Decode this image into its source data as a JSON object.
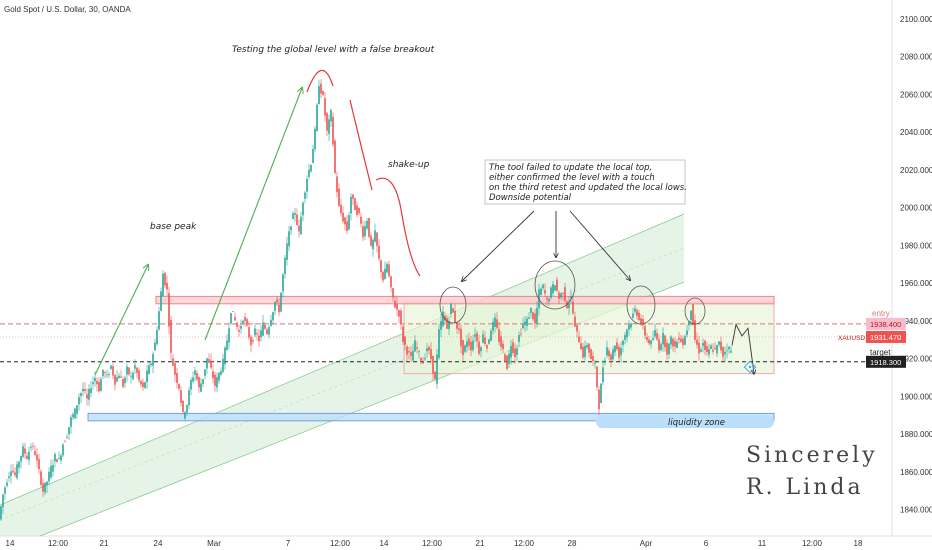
{
  "symbol_title": "Gold Spot / U.S. Dollar, 30, OANDA",
  "colors": {
    "up": "#26a69a",
    "down": "#ef5350",
    "resistance_zone": "#e57373",
    "range_box": "#e8f5d8",
    "liquidity_zone": "#5c8fd6",
    "channel": "#c8e6c9",
    "arrow_green": "#4caf50",
    "arrow_red": "#e53935",
    "entry_line": "#e57373",
    "target_line": "#222222"
  },
  "chart_data": {
    "type": "candlestick",
    "y_axis": {
      "min": 1826,
      "max": 2110,
      "ticks": [
        1840,
        1860,
        1880,
        1900,
        1920,
        1940,
        1960,
        1980,
        2000,
        2020,
        2040,
        2060,
        2080,
        2100
      ],
      "tick_labels": [
        "1840.000",
        "1860.000",
        "1880.000",
        "1900.000",
        "1920.000",
        "1940.000",
        "1960.000",
        "1980.000",
        "2000.000",
        "2020.000",
        "2040.000",
        "2060.000",
        "2080.000",
        "2100.000"
      ]
    },
    "x_axis": {
      "tick_labels": [
        "14",
        "12:00",
        "21",
        "24",
        "Mar",
        "7",
        "12:00",
        "14",
        "12:00",
        "21",
        "12:00",
        "28",
        "Apr",
        "6",
        "11",
        "12:00",
        "18"
      ]
    },
    "price_path": [
      [
        0,
        1835
      ],
      [
        4,
        1848
      ],
      [
        8,
        1856
      ],
      [
        12,
        1862
      ],
      [
        16,
        1858
      ],
      [
        20,
        1866
      ],
      [
        24,
        1872
      ],
      [
        28,
        1868
      ],
      [
        32,
        1874
      ],
      [
        36,
        1870
      ],
      [
        40,
        1860
      ],
      [
        44,
        1850
      ],
      [
        48,
        1855
      ],
      [
        52,
        1862
      ],
      [
        56,
        1868
      ],
      [
        60,
        1866
      ],
      [
        64,
        1875
      ],
      [
        68,
        1880
      ],
      [
        72,
        1888
      ],
      [
        76,
        1892
      ],
      [
        80,
        1900
      ],
      [
        84,
        1904
      ],
      [
        88,
        1898
      ],
      [
        92,
        1906
      ],
      [
        96,
        1910
      ],
      [
        100,
        1904
      ],
      [
        104,
        1914
      ],
      [
        108,
        1910
      ],
      [
        112,
        1916
      ],
      [
        116,
        1908
      ],
      [
        120,
        1912
      ],
      [
        124,
        1906
      ],
      [
        128,
        1914
      ],
      [
        132,
        1910
      ],
      [
        136,
        1916
      ],
      [
        140,
        1908
      ],
      [
        144,
        1904
      ],
      [
        148,
        1912
      ],
      [
        152,
        1918
      ],
      [
        156,
        1928
      ],
      [
        160,
        1945
      ],
      [
        164,
        1965
      ],
      [
        168,
        1956
      ],
      [
        172,
        1922
      ],
      [
        176,
        1912
      ],
      [
        180,
        1905
      ],
      [
        184,
        1890
      ],
      [
        188,
        1896
      ],
      [
        192,
        1908
      ],
      [
        196,
        1914
      ],
      [
        200,
        1904
      ],
      [
        204,
        1910
      ],
      [
        208,
        1920
      ],
      [
        212,
        1914
      ],
      [
        216,
        1906
      ],
      [
        220,
        1912
      ],
      [
        224,
        1918
      ],
      [
        228,
        1930
      ],
      [
        232,
        1946
      ],
      [
        236,
        1940
      ],
      [
        240,
        1934
      ],
      [
        244,
        1942
      ],
      [
        248,
        1936
      ],
      [
        252,
        1928
      ],
      [
        256,
        1934
      ],
      [
        260,
        1930
      ],
      [
        264,
        1938
      ],
      [
        268,
        1934
      ],
      [
        272,
        1942
      ],
      [
        276,
        1950
      ],
      [
        280,
        1946
      ],
      [
        284,
        1964
      ],
      [
        288,
        1980
      ],
      [
        292,
        1992
      ],
      [
        296,
        1998
      ],
      [
        300,
        1986
      ],
      [
        304,
        2004
      ],
      [
        308,
        2016
      ],
      [
        312,
        2024
      ],
      [
        316,
        2040
      ],
      [
        320,
        2066
      ],
      [
        324,
        2058
      ],
      [
        328,
        2040
      ],
      [
        332,
        2050
      ],
      [
        336,
        2018
      ],
      [
        340,
        2000
      ],
      [
        344,
        1994
      ],
      [
        348,
        1988
      ],
      [
        352,
        2006
      ],
      [
        356,
        2000
      ],
      [
        360,
        1996
      ],
      [
        364,
        1986
      ],
      [
        368,
        1994
      ],
      [
        372,
        1978
      ],
      [
        376,
        1986
      ],
      [
        380,
        1972
      ],
      [
        384,
        1962
      ],
      [
        388,
        1970
      ],
      [
        392,
        1956
      ],
      [
        396,
        1948
      ],
      [
        400,
        1944
      ],
      [
        404,
        1930
      ],
      [
        408,
        1924
      ],
      [
        412,
        1920
      ],
      [
        416,
        1928
      ],
      [
        420,
        1922
      ],
      [
        424,
        1918
      ],
      [
        428,
        1926
      ],
      [
        432,
        1920
      ],
      [
        436,
        1908
      ],
      [
        440,
        1934
      ],
      [
        444,
        1944
      ],
      [
        448,
        1936
      ],
      [
        452,
        1948
      ],
      [
        456,
        1940
      ],
      [
        460,
        1934
      ],
      [
        464,
        1922
      ],
      [
        468,
        1930
      ],
      [
        472,
        1926
      ],
      [
        476,
        1934
      ],
      [
        480,
        1924
      ],
      [
        484,
        1932
      ],
      [
        488,
        1926
      ],
      [
        492,
        1936
      ],
      [
        496,
        1940
      ],
      [
        500,
        1930
      ],
      [
        504,
        1924
      ],
      [
        508,
        1916
      ],
      [
        512,
        1928
      ],
      [
        516,
        1922
      ],
      [
        520,
        1932
      ],
      [
        524,
        1938
      ],
      [
        528,
        1940
      ],
      [
        532,
        1946
      ],
      [
        536,
        1938
      ],
      [
        540,
        1955
      ],
      [
        544,
        1958
      ],
      [
        548,
        1950
      ],
      [
        552,
        1956
      ],
      [
        556,
        1960
      ],
      [
        560,
        1952
      ],
      [
        564,
        1956
      ],
      [
        568,
        1948
      ],
      [
        572,
        1952
      ],
      [
        576,
        1936
      ],
      [
        580,
        1930
      ],
      [
        584,
        1922
      ],
      [
        588,
        1928
      ],
      [
        592,
        1920
      ],
      [
        596,
        1916
      ],
      [
        600,
        1895
      ],
      [
        604,
        1916
      ],
      [
        608,
        1926
      ],
      [
        612,
        1920
      ],
      [
        616,
        1928
      ],
      [
        620,
        1922
      ],
      [
        624,
        1930
      ],
      [
        628,
        1936
      ],
      [
        632,
        1940
      ],
      [
        636,
        1946
      ],
      [
        640,
        1942
      ],
      [
        644,
        1936
      ],
      [
        648,
        1930
      ],
      [
        652,
        1928
      ],
      [
        656,
        1934
      ],
      [
        660,
        1926
      ],
      [
        664,
        1932
      ],
      [
        668,
        1924
      ],
      [
        672,
        1930
      ],
      [
        676,
        1926
      ],
      [
        680,
        1932
      ],
      [
        684,
        1928
      ],
      [
        688,
        1936
      ],
      [
        692,
        1947
      ],
      [
        696,
        1930
      ],
      [
        700,
        1924
      ],
      [
        704,
        1928
      ],
      [
        708,
        1922
      ],
      [
        712,
        1926
      ],
      [
        716,
        1924
      ],
      [
        720,
        1928
      ],
      [
        724,
        1922
      ],
      [
        728,
        1926
      ],
      [
        732,
        1924
      ]
    ],
    "levels": [
      {
        "label": "entry",
        "price_label": "1938.400",
        "value": 1938.4
      },
      {
        "label": "XAUUSD",
        "price_label": "1931.470",
        "value": 1931.47
      },
      {
        "label": "target",
        "price_label": "1918.300",
        "value": 1918.3
      }
    ],
    "zones": [
      {
        "name": "resistance",
        "y_low": 1949,
        "y_high": 1953
      },
      {
        "name": "range",
        "y_low": 1912,
        "y_high": 1950
      },
      {
        "name": "liquidity zone",
        "y_low": 1887,
        "y_high": 1891
      }
    ],
    "projection": [
      [
        732,
        1927
      ],
      [
        736,
        1938
      ],
      [
        742,
        1932
      ],
      [
        748,
        1936
      ],
      [
        754,
        1912
      ]
    ],
    "annotations": {
      "false_breakout": "Testing the global level with a false breakout",
      "base_peak": "base peak",
      "shake_up": "shake-up",
      "tool_note": [
        "The tool failed to update the local top,",
        "either confirmed the level with a touch",
        "on the third retest and updated the local lows.",
        "Downside potential"
      ],
      "liquidity_zone": "liquidity zone",
      "signature": [
        "Sincerely",
        "R. Linda"
      ]
    }
  }
}
